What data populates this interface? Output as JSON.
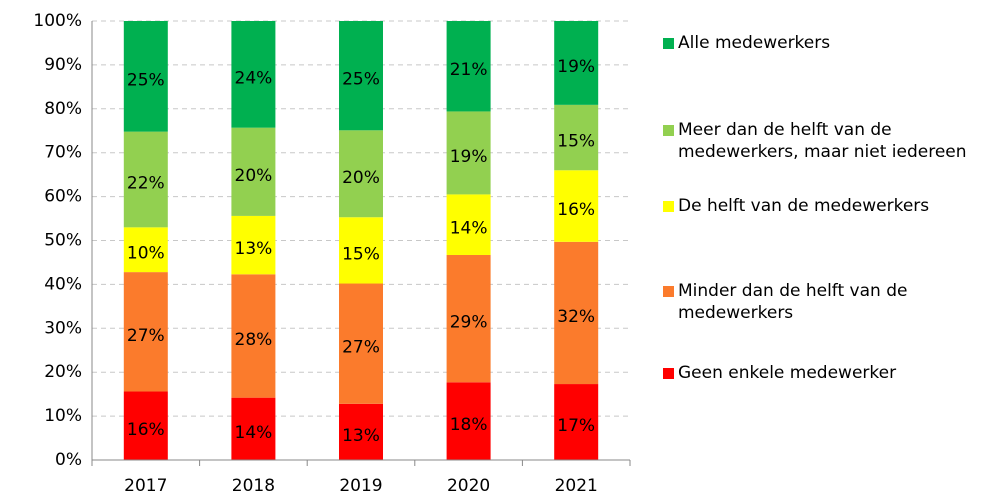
{
  "chart_data": {
    "type": "stacked_bar",
    "categories": [
      "2017",
      "2018",
      "2019",
      "2020",
      "2021"
    ],
    "series": [
      {
        "name": "Geen enkele medewerker",
        "color": "#ff0000",
        "values": [
          15.6,
          14.2,
          12.8,
          17.7,
          17.3
        ],
        "value_labels": [
          "16%",
          "14%",
          "13%",
          "18%",
          "17%"
        ]
      },
      {
        "name": "Minder dan de helft van de medewerkers",
        "color": "#fb7b2c",
        "values": [
          27.2,
          28.1,
          27.4,
          29.0,
          32.4
        ],
        "value_labels": [
          "27%",
          "28%",
          "27%",
          "29%",
          "32%"
        ]
      },
      {
        "name": "De helft van de medewerkers",
        "color": "#ffff00",
        "values": [
          10.2,
          13.3,
          15.1,
          13.8,
          16.3
        ],
        "value_labels": [
          "10%",
          "13%",
          "15%",
          "14%",
          "16%"
        ]
      },
      {
        "name": "Meer dan de helft van de medewerkers, maar niet iedereen",
        "color": "#92d050",
        "values": [
          21.8,
          20.1,
          19.8,
          18.9,
          14.9
        ],
        "value_labels": [
          "22%",
          "20%",
          "20%",
          "19%",
          "15%"
        ]
      },
      {
        "name": "Alle medewerkers",
        "color": "#00b050",
        "values": [
          25.2,
          24.3,
          24.9,
          20.6,
          19.1
        ],
        "value_labels": [
          "25%",
          "24%",
          "25%",
          "21%",
          "19%"
        ]
      }
    ],
    "ylim": [
      0,
      100
    ],
    "yticks": [
      {
        "value": 0,
        "label": "0%"
      },
      {
        "value": 10,
        "label": "10%"
      },
      {
        "value": 20,
        "label": "20%"
      },
      {
        "value": 30,
        "label": "30%"
      },
      {
        "value": 40,
        "label": "40%"
      },
      {
        "value": 50,
        "label": "50%"
      },
      {
        "value": 60,
        "label": "60%"
      },
      {
        "value": 70,
        "label": "70%"
      },
      {
        "value": 80,
        "label": "80%"
      },
      {
        "value": 90,
        "label": "90%"
      },
      {
        "value": 100,
        "label": "100%"
      }
    ],
    "grid": true,
    "legend": "right"
  }
}
